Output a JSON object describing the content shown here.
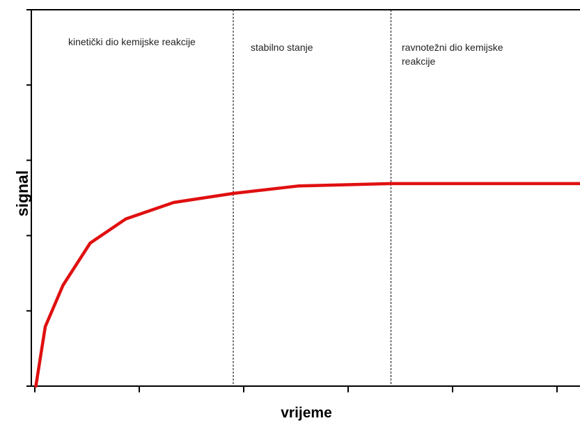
{
  "chart_data": {
    "type": "line",
    "x_label": "vrijeme",
    "y_label": "signal",
    "annotations": [
      "kinetički dio kemijske reakcije",
      "stabilno stanje",
      "ravnotežni dio kemijske reakcije"
    ],
    "dividers": [
      1.9,
      3.41
    ],
    "x": [
      0.01,
      0.1,
      0.27,
      0.53,
      0.87,
      1.33,
      1.9,
      2.53,
      3.41,
      5.22
    ],
    "series": [
      {
        "color": "#e01010",
        "values": [
          0,
          0.79,
          1.34,
          1.9,
          2.22,
          2.44,
          2.56,
          2.66,
          2.69,
          2.69
        ]
      }
    ],
    "xlim": [
      0,
      5.22
    ],
    "ylim": [
      0,
      5
    ],
    "xticks": [
      0,
      1,
      2,
      3,
      4,
      5
    ],
    "yticks": [
      0,
      1,
      2,
      3,
      4,
      5
    ]
  }
}
